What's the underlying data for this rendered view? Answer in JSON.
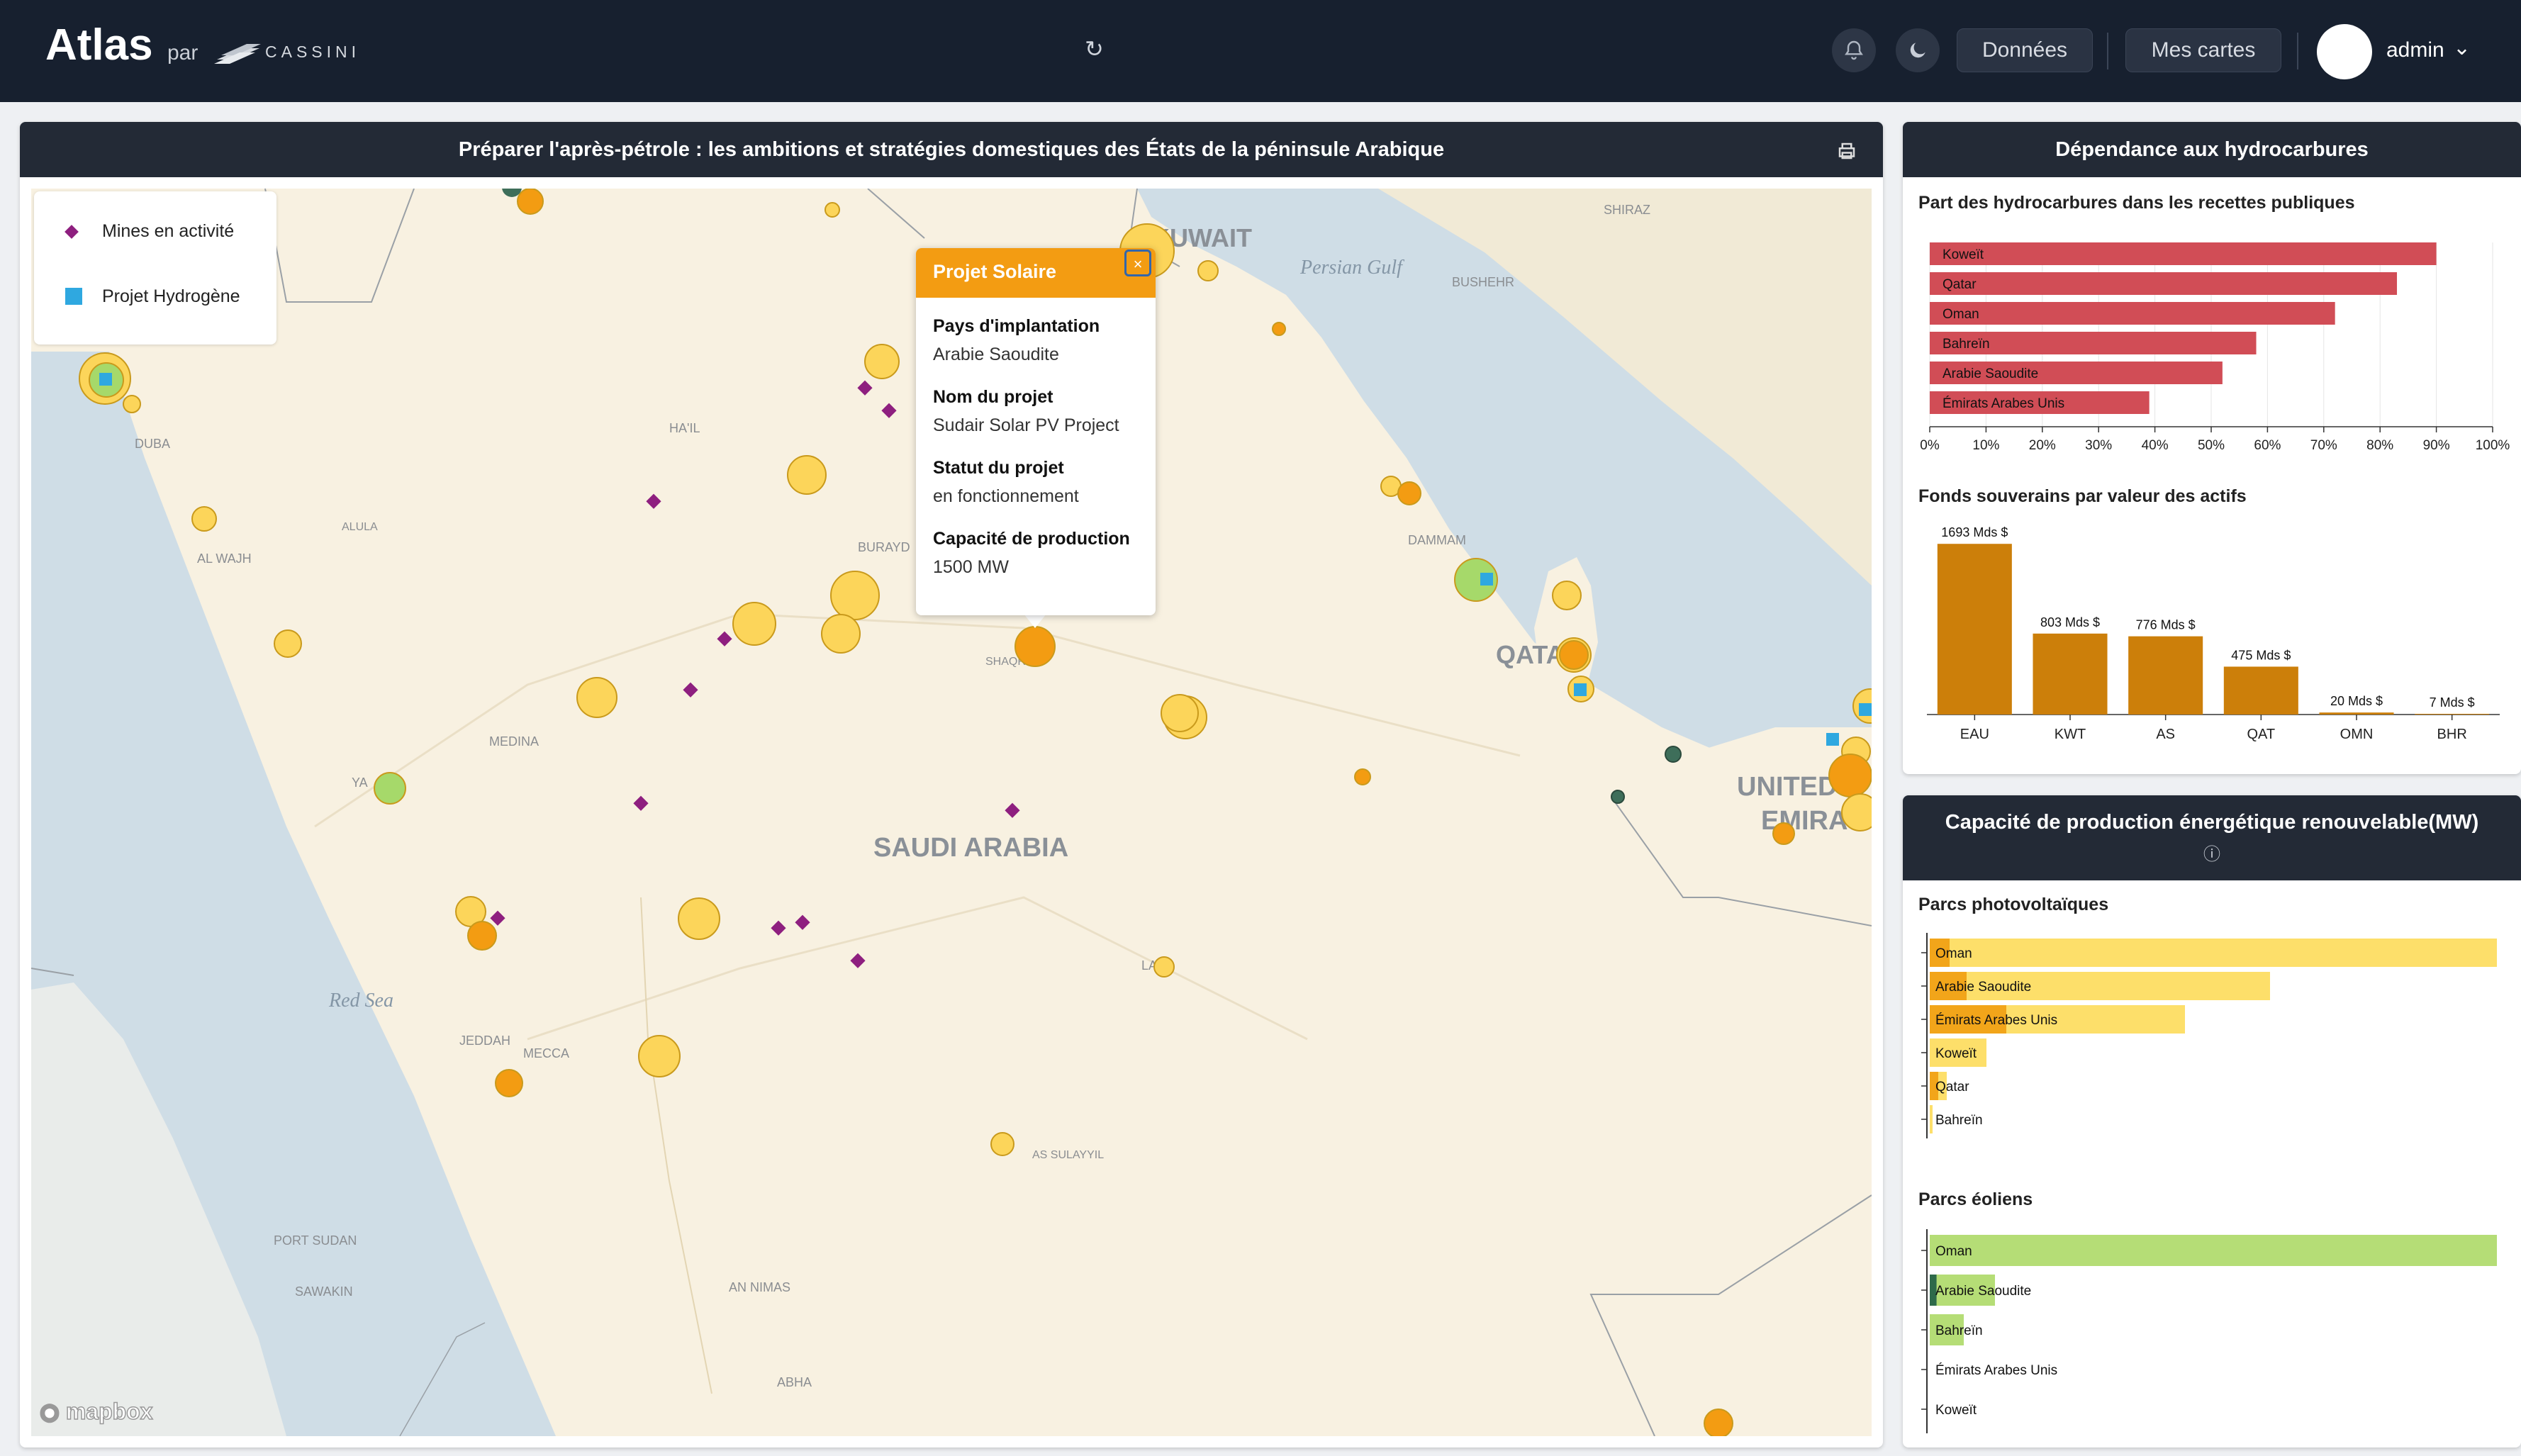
{
  "header": {
    "app_title": "Atlas",
    "by": "par",
    "brand": "CASSINI",
    "data_button": "Données",
    "maps_button": "Mes cartes",
    "user_name": "admin",
    "icons": [
      "bell-icon",
      "moon-icon",
      "refresh-icon",
      "chevron-down-icon"
    ]
  },
  "map_panel": {
    "title": "Préparer l'après-pétrole : les ambitions et stratégies domestiques des États de la péninsule Arabique",
    "legend": [
      {
        "label": "Mines en activité",
        "symbol": "diamond",
        "color": "#8e1f7f"
      },
      {
        "label": "Projet Hydrogène",
        "symbol": "square",
        "color": "#2fa8e0"
      }
    ],
    "place_labels": [
      "KUWAIT",
      "SHIRAZ",
      "BUSHEHR",
      "Persian Gulf",
      "HA'IL",
      "DUBA",
      "ALULA",
      "AL WAJH",
      "BURAYD",
      "DAMMAM",
      "QATAR",
      "SHAQR",
      "MEDINA",
      "YA",
      "SAUDI ARABIA",
      "UNITED",
      "EMIRA",
      "LA",
      "Red Sea",
      "JEDDAH",
      "MECCA",
      "AS SULAYYIL",
      "PORT SUDAN",
      "SAWAKIN",
      "AN NIMAS",
      "ABHA"
    ],
    "attribution": "mapbox",
    "popup": {
      "title": "Projet Solaire",
      "close": "×",
      "fields": [
        {
          "key": "Pays d'implantation",
          "value": "Arabie Saoudite"
        },
        {
          "key": "Nom du projet",
          "value": "Sudair Solar PV Project"
        },
        {
          "key": "Statut du projet",
          "value": "en fonctionnement"
        },
        {
          "key": "Capacité de production",
          "value": "1500 MW"
        }
      ]
    },
    "colors": {
      "land": "#f8f1e1",
      "water": "#cfdde6",
      "solar": "#fcd55a",
      "solar_large": "#f39c12",
      "wind": "#a6d96a",
      "mine": "#8e1f7f",
      "hydrogen": "#2fa8e0"
    }
  },
  "hydro_panel": {
    "title": "Dépendance aux hydrocarbures",
    "chart1_title": "Part des hydrocarbures dans les recettes publiques",
    "chart2_title": "Fonds souverains par valeur des actifs"
  },
  "renew_panel": {
    "title": "Capacité de production énergétique renouvelable(MW)",
    "info_icon": "ⓘ",
    "chart1_title": "Parcs photovoltaïques",
    "chart2_title": "Parcs éoliens"
  },
  "chart_data": [
    {
      "type": "bar",
      "orientation": "horizontal",
      "title": "Part des hydrocarbures dans les recettes publiques",
      "categories": [
        "Koweït",
        "Qatar",
        "Oman",
        "Bahreïn",
        "Arabie Saoudite",
        "Émirats Arabes Unis"
      ],
      "values": [
        90,
        83,
        72,
        58,
        52,
        39
      ],
      "xlim": [
        0,
        100
      ],
      "ticks": [
        "0%",
        "10%",
        "20%",
        "30%",
        "40%",
        "50%",
        "60%",
        "70%",
        "80%",
        "90%",
        "100%"
      ],
      "color": "#d14d56"
    },
    {
      "type": "bar",
      "title": "Fonds souverains par valeur des actifs",
      "categories": [
        "EAU",
        "KWT",
        "AS",
        "QAT",
        "OMN",
        "BHR"
      ],
      "values": [
        1693,
        803,
        776,
        475,
        20,
        7
      ],
      "labels": [
        "1693 Mds $",
        "803 Mds $",
        "776 Mds $",
        "475 Mds $",
        "20 Mds $",
        "7 Mds $"
      ],
      "ylim": [
        0,
        1800
      ],
      "color": "#cc7f0a"
    },
    {
      "type": "bar",
      "orientation": "horizontal",
      "title": "Parcs photovoltaïques",
      "categories": [
        "Oman",
        "Arabie Saoudite",
        "Émirats Arabes Unis",
        "Koweït",
        "Qatar",
        "Bahreïn"
      ],
      "series": [
        {
          "values": [
            1000,
            600,
            450,
            100,
            30,
            5
          ],
          "color": "#fddf6a"
        },
        {
          "values": [
            35,
            65,
            135,
            0,
            15,
            0
          ],
          "color": "#f2a51a"
        }
      ],
      "xlim": [
        0,
        1000
      ]
    },
    {
      "type": "bar",
      "orientation": "horizontal",
      "title": "Parcs éoliens",
      "categories": [
        "Oman",
        "Arabie Saoudite",
        "Bahreïn",
        "Émirats Arabes Unis",
        "Koweït"
      ],
      "series": [
        {
          "values": [
            1000,
            115,
            60,
            0,
            0
          ],
          "color": "#b5dd76"
        },
        {
          "values": [
            0,
            12,
            0,
            0,
            0
          ],
          "color": "#2e6a4a"
        }
      ],
      "xlim": [
        0,
        1000
      ]
    }
  ]
}
